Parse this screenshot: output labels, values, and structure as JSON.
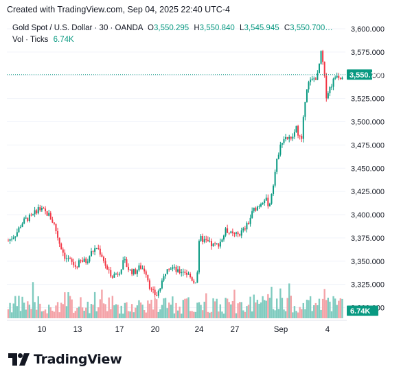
{
  "header": {
    "text": "Created with TradingView.com, Sep 04, 2025 22:40 UTC-4"
  },
  "legend": {
    "symbol": "Gold Spot / U.S. Dollar · 30 · OANDA",
    "open_label": "O",
    "open": "3,550.295",
    "high_label": "H",
    "high": "3,550.840",
    "low_label": "L",
    "low": "3,545.945",
    "close_label": "C",
    "close": "3,550.700…",
    "volume_label": "Vol · Ticks",
    "volume": "6.74K"
  },
  "price_axis": {
    "ticks": [
      "3,600.000",
      "3,575.000",
      "3,550.000",
      "3,525.000",
      "3,500.000",
      "3,475.000",
      "3,450.000",
      "3,425.000",
      "3,400.000",
      "3,375.000",
      "3,350.000",
      "3,325.000",
      "3,300.000"
    ],
    "last_price_label": "3,550.700",
    "volume_label": "6.74K"
  },
  "time_axis": {
    "ticks": [
      "10",
      "13",
      "17",
      "20",
      "24",
      "27",
      "Sep",
      "4"
    ]
  },
  "brand": {
    "name": "TradingView"
  },
  "colors": {
    "up": "#089981",
    "down": "#f23645",
    "vol_up": "#7fcbbf",
    "vol_down": "#f4a3a8",
    "last_price": "#089981"
  },
  "chart_data": {
    "type": "candlestick",
    "symbol": "XAUUSD",
    "interval": "30",
    "ylim": [
      3300,
      3600
    ],
    "x_ticks": [
      "10",
      "13",
      "17",
      "20",
      "24",
      "27",
      "Sep",
      "4"
    ],
    "y_ticks": [
      3600,
      3575,
      3550,
      3525,
      3500,
      3475,
      3450,
      3425,
      3400,
      3375,
      3350,
      3325,
      3300
    ],
    "last_price": 3550.7,
    "last_volume": "6.74K",
    "close_path": [
      {
        "t": 0,
        "v": 3372
      },
      {
        "t": 3,
        "v": 3380
      },
      {
        "t": 5,
        "v": 3391
      },
      {
        "t": 7,
        "v": 3396
      },
      {
        "t": 9,
        "v": 3398
      },
      {
        "t": 11,
        "v": 3407
      },
      {
        "t": 13,
        "v": 3404
      },
      {
        "t": 15,
        "v": 3400
      },
      {
        "t": 17,
        "v": 3390
      },
      {
        "t": 19,
        "v": 3370
      },
      {
        "t": 21,
        "v": 3355
      },
      {
        "t": 23,
        "v": 3350
      },
      {
        "t": 25,
        "v": 3344
      },
      {
        "t": 27,
        "v": 3350
      },
      {
        "t": 29,
        "v": 3350
      },
      {
        "t": 31,
        "v": 3360
      },
      {
        "t": 33,
        "v": 3365
      },
      {
        "t": 35,
        "v": 3355
      },
      {
        "t": 37,
        "v": 3338
      },
      {
        "t": 39,
        "v": 3335
      },
      {
        "t": 41,
        "v": 3338
      },
      {
        "t": 43,
        "v": 3350
      },
      {
        "t": 45,
        "v": 3340
      },
      {
        "t": 47,
        "v": 3338
      },
      {
        "t": 49,
        "v": 3344
      },
      {
        "t": 51,
        "v": 3340
      },
      {
        "t": 53,
        "v": 3318
      },
      {
        "t": 55,
        "v": 3313
      },
      {
        "t": 57,
        "v": 3325
      },
      {
        "t": 59,
        "v": 3345
      },
      {
        "t": 61,
        "v": 3343
      },
      {
        "t": 63,
        "v": 3338
      },
      {
        "t": 65,
        "v": 3340
      },
      {
        "t": 67,
        "v": 3335
      },
      {
        "t": 69,
        "v": 3328
      },
      {
        "t": 70,
        "v": 3330
      },
      {
        "t": 71,
        "v": 3375
      },
      {
        "t": 73,
        "v": 3372
      },
      {
        "t": 75,
        "v": 3368
      },
      {
        "t": 77,
        "v": 3366
      },
      {
        "t": 79,
        "v": 3372
      },
      {
        "t": 81,
        "v": 3384
      },
      {
        "t": 83,
        "v": 3378
      },
      {
        "t": 85,
        "v": 3378
      },
      {
        "t": 87,
        "v": 3382
      },
      {
        "t": 89,
        "v": 3390
      },
      {
        "t": 91,
        "v": 3405
      },
      {
        "t": 93,
        "v": 3410
      },
      {
        "t": 95,
        "v": 3418
      },
      {
        "t": 97,
        "v": 3410
      },
      {
        "t": 99,
        "v": 3445
      },
      {
        "t": 101,
        "v": 3478
      },
      {
        "t": 103,
        "v": 3484
      },
      {
        "t": 105,
        "v": 3480
      },
      {
        "t": 107,
        "v": 3493
      },
      {
        "t": 109,
        "v": 3478
      },
      {
        "t": 110,
        "v": 3520
      },
      {
        "t": 111,
        "v": 3540
      },
      {
        "t": 113,
        "v": 3545
      },
      {
        "t": 115,
        "v": 3550
      },
      {
        "t": 116,
        "v": 3575
      },
      {
        "t": 117,
        "v": 3560
      },
      {
        "t": 118,
        "v": 3528
      },
      {
        "t": 120,
        "v": 3540
      },
      {
        "t": 122,
        "v": 3552
      },
      {
        "t": 123,
        "v": 3548
      },
      {
        "t": 124,
        "v": 3550.7
      }
    ],
    "volume_range": [
      0,
      14000
    ]
  }
}
